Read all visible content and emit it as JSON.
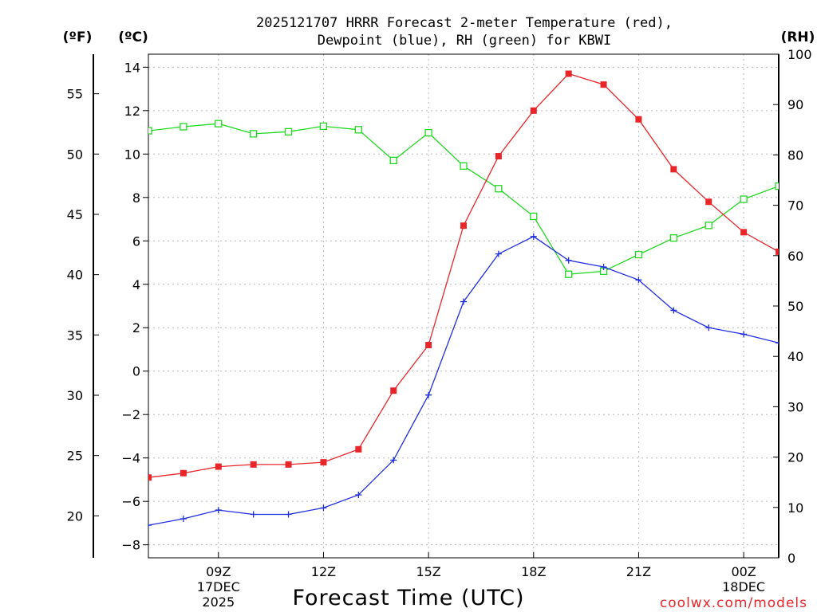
{
  "chart_data": {
    "type": "line",
    "title_lines": [
      "2025121707 HRRR Forecast 2-meter Temperature (red),",
      "Dewpoint (blue), RH (green) for KBWI"
    ],
    "units": {
      "fahrenheit": "(ºF)",
      "celsius": "(ºC)",
      "rh": "(RH)"
    },
    "xlabel": "Forecast Time (UTC)",
    "credit": "coolwx.com/models",
    "x": [
      7,
      8,
      9,
      10,
      11,
      12,
      13,
      14,
      15,
      16,
      17,
      18,
      19,
      20,
      21,
      22,
      23,
      24,
      25
    ],
    "xlim": [
      7,
      25
    ],
    "x_ticks": [
      {
        "x": 9,
        "lines": [
          "09Z",
          "17DEC",
          "2025"
        ]
      },
      {
        "x": 12,
        "lines": [
          "12Z"
        ]
      },
      {
        "x": 15,
        "lines": [
          "15Z"
        ]
      },
      {
        "x": 18,
        "lines": [
          "18Z"
        ]
      },
      {
        "x": 21,
        "lines": [
          "21Z"
        ]
      },
      {
        "x": 24,
        "lines": [
          "00Z",
          "18DEC"
        ]
      }
    ],
    "celsius_axis": {
      "ylim": [
        -8.6,
        14.6
      ],
      "ticks": [
        -8,
        -6,
        -4,
        -2,
        0,
        2,
        4,
        6,
        8,
        10,
        12,
        14
      ],
      "tick_labels": [
        "−8",
        "−6",
        "−4",
        "−2",
        "0",
        "2",
        "4",
        "6",
        "8",
        "10",
        "12",
        "14"
      ]
    },
    "fahrenheit_axis": {
      "ticks": [
        20,
        25,
        30,
        35,
        40,
        45,
        50,
        55
      ],
      "tick_labels": [
        "20",
        "25",
        "30",
        "35",
        "40",
        "45",
        "50",
        "55"
      ]
    },
    "rh_axis": {
      "ylim": [
        0,
        100
      ],
      "ticks": [
        0,
        10,
        20,
        30,
        40,
        50,
        60,
        70,
        80,
        90,
        100
      ],
      "tick_labels": [
        "0",
        "10",
        "20",
        "30",
        "40",
        "50",
        "60",
        "70",
        "80",
        "90",
        "100"
      ]
    },
    "series": [
      {
        "name": "Temperature",
        "axis": "celsius",
        "color": "#e8262a",
        "marker": "filled-square",
        "values": [
          -4.9,
          -4.7,
          -4.4,
          -4.3,
          -4.3,
          -4.2,
          -3.6,
          -0.9,
          1.2,
          6.7,
          9.9,
          12.0,
          13.7,
          13.2,
          11.6,
          9.3,
          7.8,
          6.4,
          5.5
        ]
      },
      {
        "name": "Dewpoint",
        "axis": "celsius",
        "color": "#1f2ee0",
        "marker": "plus",
        "values": [
          -7.1,
          -6.8,
          -6.4,
          -6.6,
          -6.6,
          -6.3,
          -5.7,
          -4.1,
          -1.1,
          3.2,
          5.4,
          6.2,
          5.1,
          4.8,
          4.2,
          2.8,
          2.0,
          1.7,
          1.3
        ]
      },
      {
        "name": "RH",
        "axis": "rh",
        "color": "#22d822",
        "marker": "open-square",
        "values": [
          84.8,
          85.6,
          86.2,
          84.2,
          84.6,
          85.7,
          85.0,
          78.9,
          84.4,
          77.8,
          73.3,
          67.8,
          56.3,
          56.9,
          60.2,
          63.5,
          66.0,
          71.2,
          73.8
        ]
      }
    ]
  }
}
